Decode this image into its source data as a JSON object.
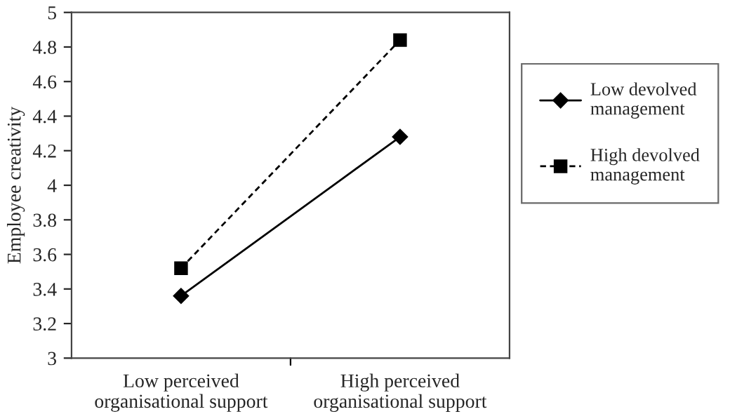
{
  "chart_data": {
    "type": "line",
    "ylabel": "Employee creativity",
    "categories": [
      "Low perceived\norganisational support",
      "High perceived\norganisational support"
    ],
    "series": [
      {
        "name": "Low devolved\nmanagement",
        "color": "#000000",
        "values": [
          3.36,
          4.28
        ],
        "marker": "diamond",
        "line_style": "solid"
      },
      {
        "name": "High devolved\nmanagement",
        "color": "#000000",
        "values": [
          3.52,
          4.84
        ],
        "marker": "square",
        "line_style": "dashed"
      }
    ],
    "ylim": [
      3,
      5
    ],
    "yticks": [
      3,
      3.2,
      3.4,
      3.6,
      3.8,
      4,
      4.2,
      4.4,
      4.6,
      4.8,
      5
    ],
    "grid": false,
    "legend": "right"
  }
}
